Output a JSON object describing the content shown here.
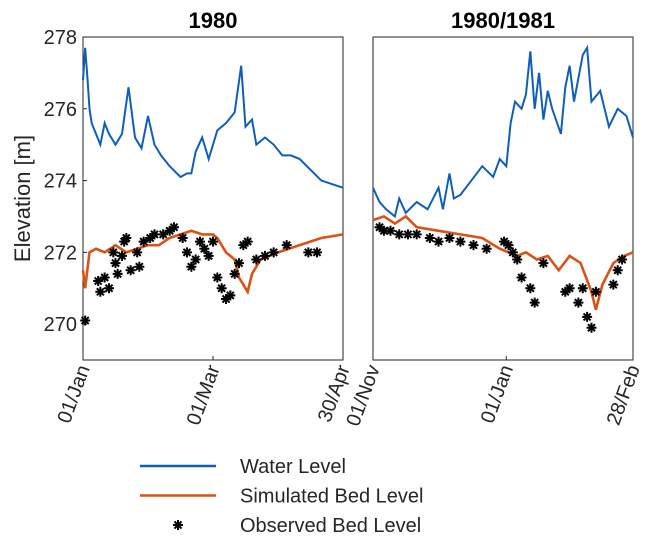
{
  "chart_data": [
    {
      "type": "line",
      "title": "1980",
      "ylabel": "Elevation [m]",
      "xlim": [
        0,
        120
      ],
      "xticks": [
        {
          "value": 0,
          "label": "01/Jan"
        },
        {
          "value": 60,
          "label": "01/Mar"
        },
        {
          "value": 120,
          "label": "30/Apr"
        }
      ],
      "ylim": [
        269,
        278
      ],
      "yticks": [
        270,
        272,
        274,
        276,
        278
      ],
      "series": [
        {
          "name": "Water Level",
          "color": "#0f5fb8",
          "x": [
            0,
            1,
            2,
            3,
            4,
            6,
            8,
            10,
            12,
            15,
            18,
            21,
            24,
            27,
            30,
            33,
            36,
            40,
            45,
            48,
            50,
            52,
            55,
            58,
            62,
            66,
            70,
            73,
            75,
            78,
            80,
            84,
            88,
            92,
            96,
            100,
            105,
            110,
            115,
            120
          ],
          "values": [
            276.8,
            277.7,
            276.9,
            276.0,
            275.6,
            275.3,
            275.0,
            275.6,
            275.3,
            275.0,
            275.3,
            276.6,
            275.2,
            274.9,
            275.8,
            275.0,
            274.7,
            274.4,
            274.1,
            274.2,
            274.2,
            274.8,
            275.2,
            274.6,
            275.4,
            275.6,
            275.9,
            277.2,
            275.5,
            275.7,
            275.0,
            275.2,
            275.0,
            274.7,
            274.7,
            274.6,
            274.3,
            274.0,
            273.9,
            273.8
          ]
        },
        {
          "name": "Simulated Bed Level",
          "color": "#d95319",
          "x": [
            0,
            1,
            3,
            6,
            10,
            15,
            20,
            25,
            30,
            35,
            40,
            45,
            50,
            55,
            60,
            62,
            66,
            70,
            72,
            76,
            78,
            82,
            90,
            100,
            110,
            120
          ],
          "values": [
            271.5,
            271.0,
            272.0,
            272.1,
            272.0,
            272.2,
            272.0,
            272.1,
            272.2,
            272.2,
            272.4,
            272.5,
            272.6,
            272.5,
            272.5,
            272.4,
            272.0,
            271.8,
            271.3,
            270.9,
            271.4,
            271.8,
            272.0,
            272.2,
            272.4,
            272.5
          ]
        },
        {
          "name": "Observed Bed Level",
          "color": "#000000",
          "marker": "*",
          "x": [
            1,
            7,
            8,
            10,
            12,
            14,
            15,
            16,
            18,
            19,
            20,
            22,
            25,
            26,
            28,
            31,
            33,
            37,
            40,
            42,
            46,
            48,
            50,
            52,
            54,
            56,
            58,
            60,
            62,
            64,
            66,
            68,
            70,
            72,
            74,
            76,
            80,
            84,
            88,
            94,
            104,
            108
          ],
          "values": [
            270.1,
            271.2,
            270.9,
            271.3,
            271.0,
            272.0,
            271.7,
            271.4,
            271.9,
            272.3,
            272.4,
            271.5,
            272.0,
            271.6,
            272.3,
            272.4,
            272.5,
            272.5,
            272.6,
            272.7,
            272.4,
            272.0,
            271.6,
            271.8,
            272.3,
            272.1,
            271.9,
            272.3,
            271.3,
            271.0,
            270.7,
            270.8,
            271.4,
            271.7,
            272.2,
            272.3,
            271.8,
            271.9,
            272.0,
            272.2,
            272.0,
            272.0
          ]
        }
      ]
    },
    {
      "type": "line",
      "title": "1980/1981",
      "xlim": [
        0,
        119
      ],
      "xticks": [
        {
          "value": 0,
          "label": "01/Nov"
        },
        {
          "value": 61,
          "label": "01/Jan"
        },
        {
          "value": 119,
          "label": "28/Feb"
        }
      ],
      "ylim": [
        269,
        278
      ],
      "series": [
        {
          "color": "#0f5fb8",
          "x": [
            0,
            3,
            6,
            10,
            12,
            15,
            20,
            25,
            30,
            32,
            35,
            37,
            40,
            45,
            50,
            55,
            58,
            61,
            63,
            65,
            68,
            70,
            72,
            74,
            76,
            78,
            80,
            82,
            86,
            88,
            90,
            92,
            96,
            98,
            100,
            104,
            108,
            112,
            116,
            119
          ],
          "values": [
            273.8,
            273.4,
            273.2,
            273.0,
            273.5,
            273.1,
            273.4,
            273.2,
            273.8,
            273.2,
            274.2,
            273.5,
            273.6,
            274.0,
            274.4,
            274.1,
            274.6,
            274.4,
            275.6,
            276.2,
            276.0,
            276.4,
            277.6,
            276.0,
            277.0,
            275.7,
            276.5,
            276.0,
            275.3,
            276.6,
            277.2,
            276.2,
            277.5,
            277.7,
            276.2,
            276.5,
            275.5,
            276.0,
            275.8,
            275.2
          ]
        },
        {
          "color": "#d95319",
          "x": [
            0,
            5,
            10,
            15,
            20,
            30,
            40,
            50,
            58,
            62,
            66,
            70,
            75,
            80,
            85,
            90,
            95,
            100,
            102,
            105,
            110,
            115,
            119
          ],
          "values": [
            272.9,
            273.0,
            272.8,
            273.0,
            272.7,
            272.6,
            272.5,
            272.4,
            272.1,
            272.0,
            271.9,
            272.0,
            271.8,
            271.9,
            271.5,
            271.9,
            271.7,
            270.9,
            270.4,
            271.1,
            271.7,
            271.9,
            272.0
          ]
        },
        {
          "color": "#000000",
          "marker": "*",
          "x": [
            3,
            5,
            8,
            12,
            16,
            20,
            26,
            30,
            35,
            40,
            46,
            52,
            60,
            62,
            64,
            66,
            68,
            72,
            74,
            78,
            88,
            90,
            94,
            96,
            98,
            100,
            102,
            110,
            112,
            114
          ],
          "values": [
            272.7,
            272.6,
            272.6,
            272.5,
            272.5,
            272.5,
            272.4,
            272.3,
            272.4,
            272.3,
            272.2,
            272.1,
            272.3,
            272.2,
            272.0,
            271.8,
            271.3,
            271.0,
            270.6,
            271.7,
            270.9,
            271.0,
            270.6,
            271.0,
            270.2,
            269.9,
            270.9,
            271.1,
            271.5,
            271.8
          ]
        }
      ]
    }
  ]
}
